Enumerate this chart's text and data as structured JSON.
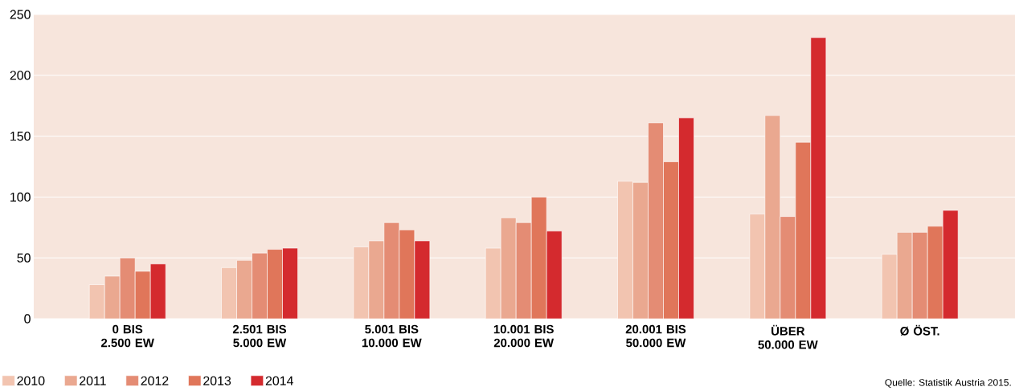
{
  "chart_data": {
    "type": "bar",
    "categories": [
      "0 BIS 2.500 EW",
      "2.501 BIS 5.000 EW",
      "5.001 BIS 10.000 EW",
      "10.001 BIS 20.000 EW",
      "20.001 BIS 50.000 EW",
      "ÜBER 50.000 EW",
      "Ø ÖST."
    ],
    "series": [
      {
        "name": "2010",
        "color": "#f2c4b0",
        "values": [
          28,
          42,
          59,
          58,
          113,
          86,
          53
        ]
      },
      {
        "name": "2011",
        "color": "#eaa890",
        "values": [
          35,
          48,
          64,
          83,
          112,
          167,
          71
        ]
      },
      {
        "name": "2012",
        "color": "#e48c74",
        "values": [
          50,
          54,
          79,
          79,
          161,
          84,
          71
        ]
      },
      {
        "name": "2013",
        "color": "#e0765a",
        "values": [
          39,
          57,
          73,
          100,
          129,
          145,
          76
        ]
      },
      {
        "name": "2014",
        "color": "#d42a2e",
        "values": [
          45,
          58,
          64,
          72,
          165,
          231,
          89
        ]
      }
    ],
    "ylim": [
      0,
      250
    ],
    "yticks": [
      0,
      50,
      100,
      150,
      200,
      250
    ],
    "grid": "y",
    "legend": "bottom left",
    "annotations": [
      "Quelle: Statistik Austria 2015."
    ]
  }
}
